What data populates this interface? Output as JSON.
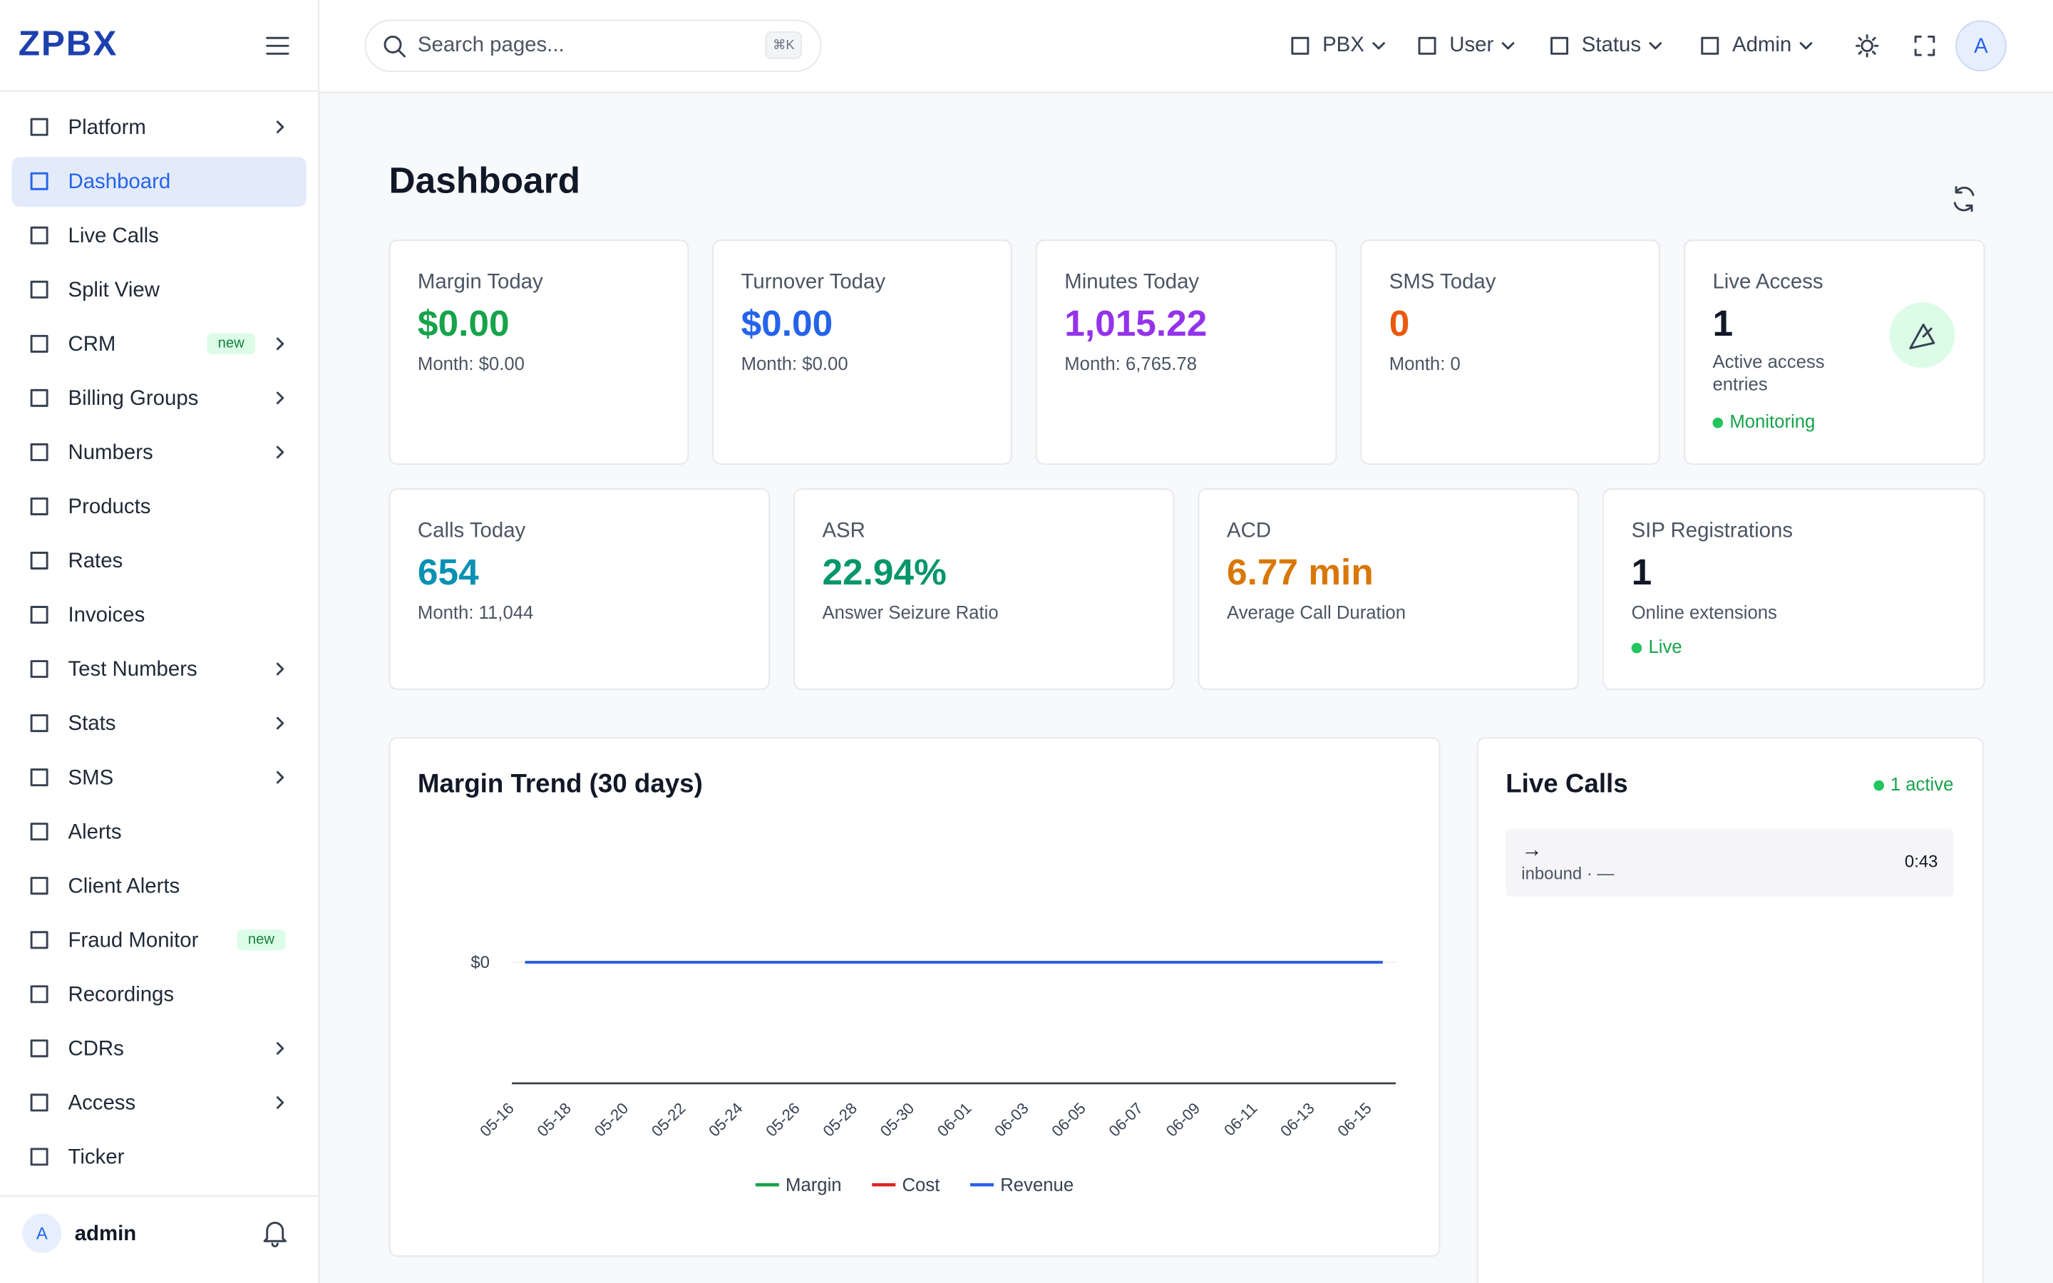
{
  "sidebar": {
    "brand": "ZPBX",
    "items": [
      {
        "label": "Platform",
        "expandable": true
      },
      {
        "label": "Dashboard",
        "active": true
      },
      {
        "label": "Live Calls"
      },
      {
        "label": "Split View"
      },
      {
        "label": "CRM",
        "badge": "new",
        "expandable": true
      },
      {
        "label": "Billing Groups",
        "expandable": true
      },
      {
        "label": "Numbers",
        "expandable": true
      },
      {
        "label": "Products"
      },
      {
        "label": "Rates"
      },
      {
        "label": "Invoices"
      },
      {
        "label": "Test Numbers",
        "expandable": true
      },
      {
        "label": "Stats",
        "expandable": true
      },
      {
        "label": "SMS",
        "expandable": true
      },
      {
        "label": "Alerts"
      },
      {
        "label": "Client Alerts"
      },
      {
        "label": "Fraud Monitor",
        "badge": "new"
      },
      {
        "label": "Recordings"
      },
      {
        "label": "CDRs",
        "expandable": true
      },
      {
        "label": "Access",
        "expandable": true
      },
      {
        "label": "Ticker"
      }
    ],
    "user": {
      "avatar": "A",
      "name": "admin"
    }
  },
  "topbar": {
    "search": "Search pages...",
    "shortcut": "⌘K",
    "menus": [
      "PBX",
      "User",
      "Status",
      "Admin"
    ],
    "avatar": "A"
  },
  "page": {
    "title": "Dashboard"
  },
  "stats_row1": [
    {
      "label": "Margin Today",
      "value": "$0.00",
      "sub": "Month: $0.00",
      "color": "#16a34a"
    },
    {
      "label": "Turnover Today",
      "value": "$0.00",
      "sub": "Month: $0.00",
      "color": "#2563eb"
    },
    {
      "label": "Minutes Today",
      "value": "1,015.22",
      "sub": "Month: 6,765.78",
      "color": "#9333ea"
    },
    {
      "label": "SMS Today",
      "value": "0",
      "sub": "Month: 0",
      "color": "#ea580c"
    },
    {
      "label": "Live Access",
      "value": "1",
      "sub": "Active access entries",
      "status": "Monitoring",
      "color": "#111827"
    }
  ],
  "stats_row2": [
    {
      "label": "Calls Today",
      "value": "654",
      "sub": "Month: 11,044",
      "color": "#0891b2"
    },
    {
      "label": "ASR",
      "value": "22.94%",
      "sub": "Answer Seizure Ratio",
      "color": "#059669"
    },
    {
      "label": "ACD",
      "value": "6.77 min",
      "sub": "Average Call Duration",
      "color": "#d97706"
    },
    {
      "label": "SIP Registrations",
      "value": "1",
      "sub": "Online extensions",
      "status": "Live",
      "color": "#111827"
    }
  ],
  "chart_data": {
    "type": "line",
    "title": "Margin Trend (30 days)",
    "categories": [
      "05-16",
      "05-18",
      "05-20",
      "05-22",
      "05-24",
      "05-26",
      "05-28",
      "05-30",
      "06-01",
      "06-03",
      "06-05",
      "06-07",
      "06-09",
      "06-11",
      "06-13",
      "06-15"
    ],
    "series": [
      {
        "name": "Margin",
        "color": "#16a34a",
        "values": [
          0,
          0,
          0,
          0,
          0,
          0,
          0,
          0,
          0,
          0,
          0,
          0,
          0,
          0,
          0,
          0
        ]
      },
      {
        "name": "Cost",
        "color": "#dc2626",
        "values": [
          0,
          0,
          0,
          0,
          0,
          0,
          0,
          0,
          0,
          0,
          0,
          0,
          0,
          0,
          0,
          0
        ]
      },
      {
        "name": "Revenue",
        "color": "#2563eb",
        "values": [
          0,
          0,
          0,
          0,
          0,
          0,
          0,
          0,
          0,
          0,
          0,
          0,
          0,
          0,
          0,
          0
        ]
      }
    ],
    "ylim": [
      -1,
      1
    ],
    "yticks": [
      {
        "value": 0,
        "label": "$0"
      }
    ],
    "grid": true,
    "legend": "bottom"
  },
  "live_calls": {
    "title": "Live Calls",
    "status": "1 active",
    "calls": [
      {
        "arrow": "→",
        "direction": "inbound · —",
        "duration": "0:43"
      }
    ]
  }
}
